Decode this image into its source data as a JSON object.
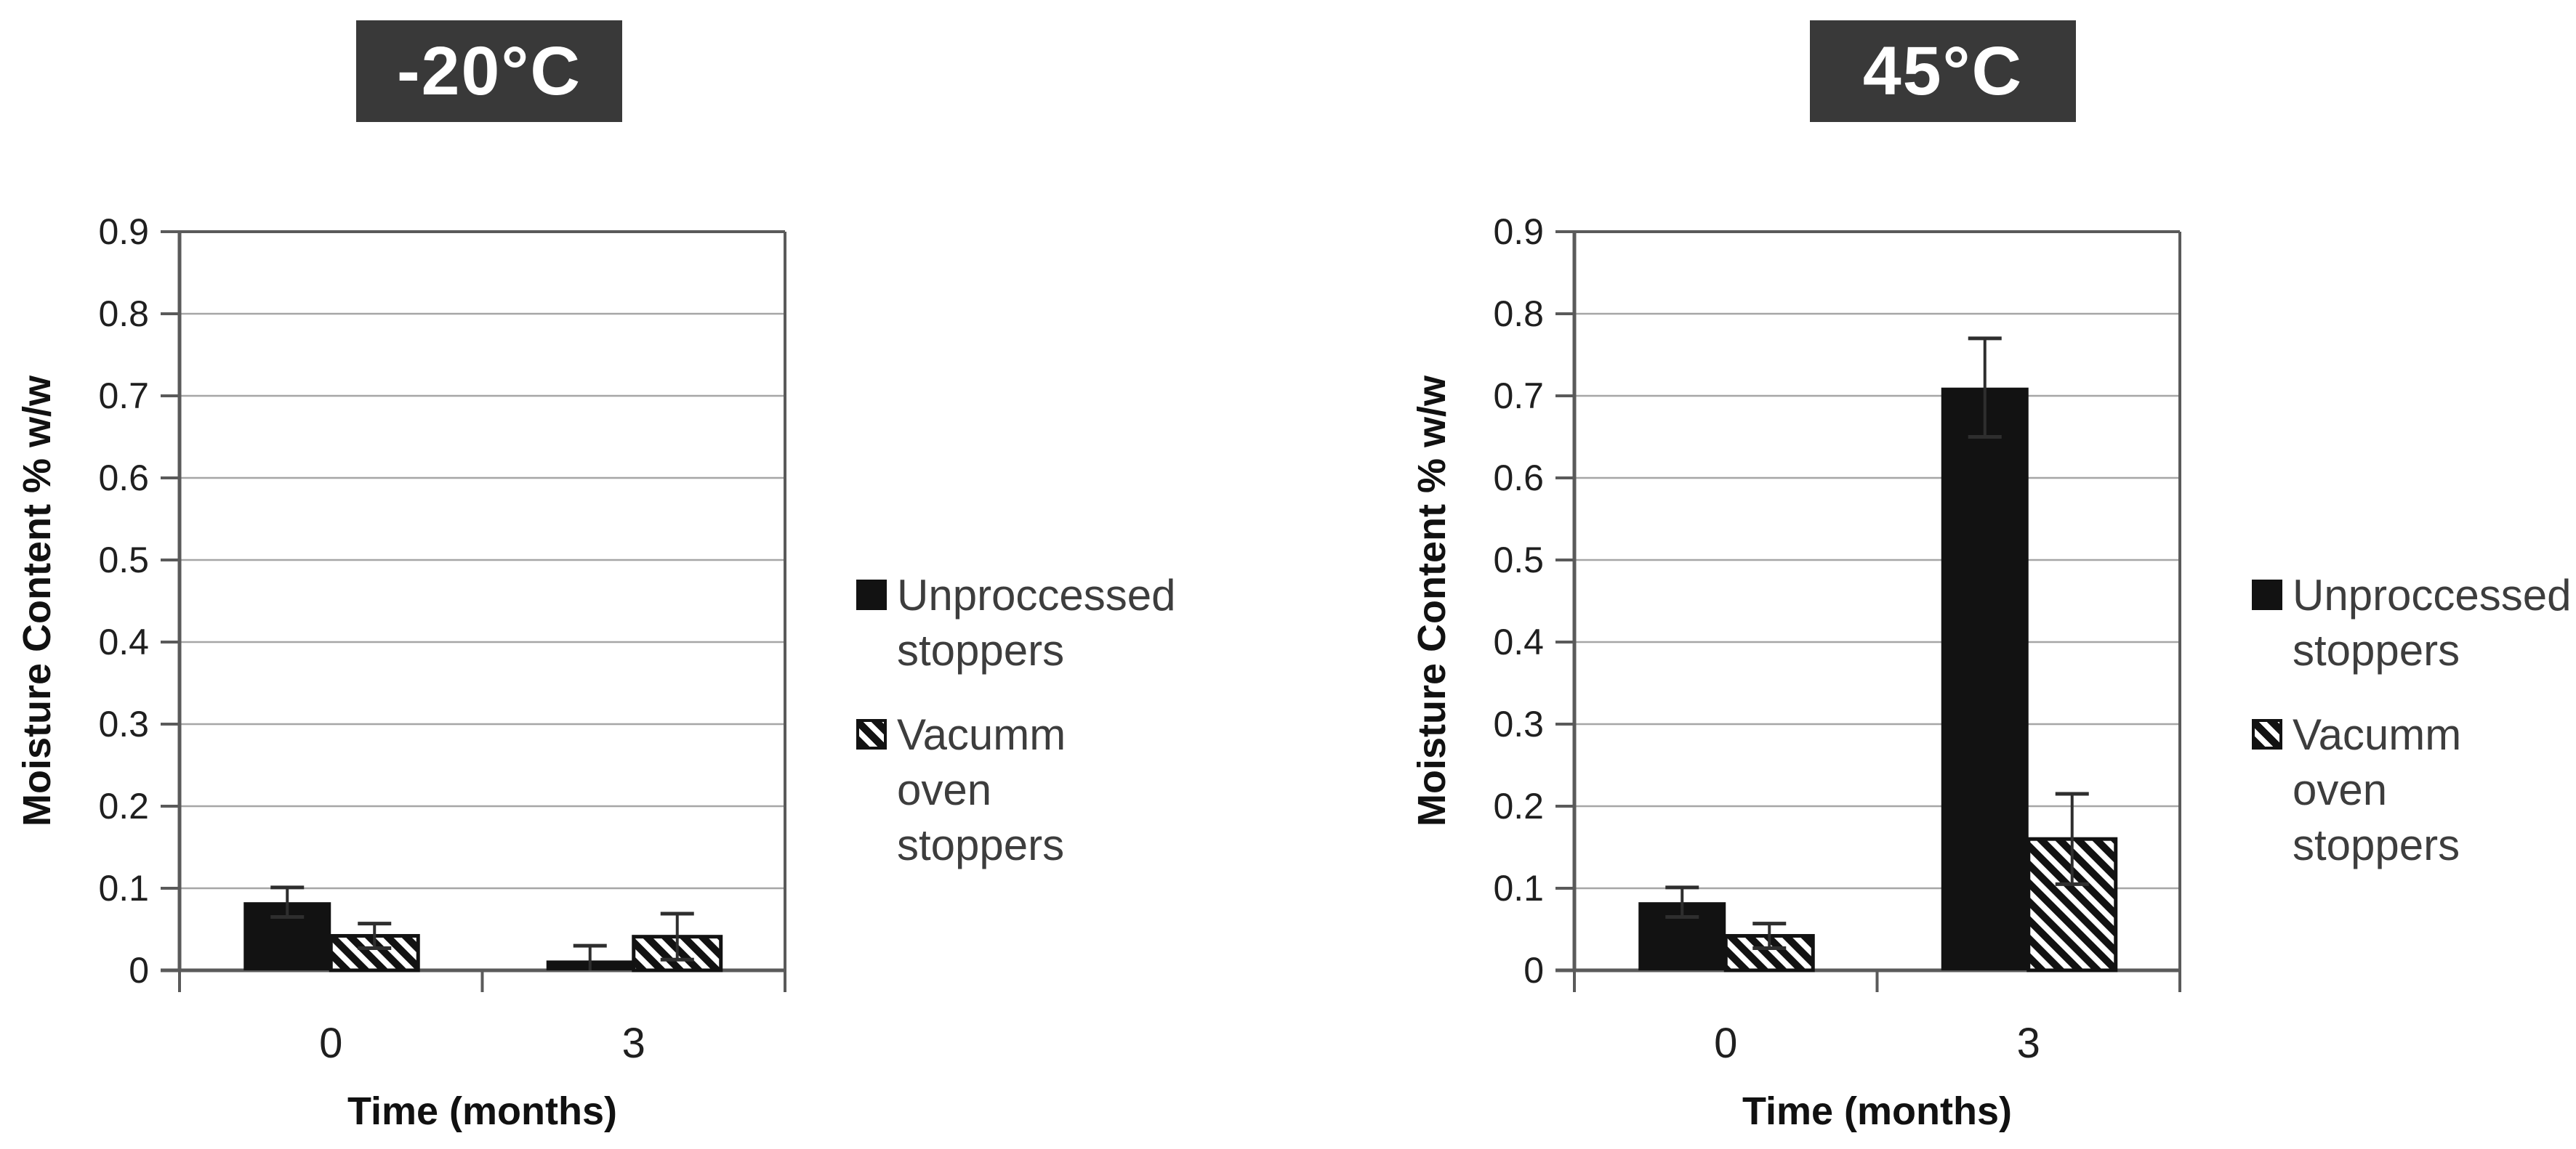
{
  "figure": {
    "background": "#ffffff"
  },
  "colors": {
    "badge_bg": "#393939",
    "badge_text": "#ffffff",
    "bar_fill": "#121212",
    "hatch_bg": "#ffffff",
    "hatch_stripe": "#121212",
    "axis_line": "#5a5a5a",
    "gridline": "#a6a6a6",
    "error_bar": "#2e2e2e",
    "tick_text": "#1f1f1f",
    "axis_title_text": "#111111",
    "legend_text": "#3d3d3d"
  },
  "chart_data": [
    {
      "type": "bar",
      "title": "-20°C",
      "categories": [
        "0",
        "3"
      ],
      "series": [
        {
          "name": "Unproccessed stoppers",
          "pattern": "solid",
          "values": [
            0.083,
            0.012
          ],
          "errors": [
            0.018,
            0.018
          ]
        },
        {
          "name": "Vacumm oven stoppers",
          "pattern": "diagonal-hatch",
          "values": [
            0.042,
            0.041
          ],
          "errors": [
            0.015,
            0.028
          ]
        }
      ],
      "xlabel": "Time (months)",
      "ylabel": "Moisture Content % w/w",
      "ylim": [
        0,
        0.9
      ],
      "ytick_step": 0.1,
      "grid": true,
      "legend_position": "right"
    },
    {
      "type": "bar",
      "title": "45°C",
      "categories": [
        "0",
        "3"
      ],
      "series": [
        {
          "name": "Unproccessed stoppers",
          "pattern": "solid",
          "values": [
            0.083,
            0.71
          ],
          "errors": [
            0.018,
            0.06
          ]
        },
        {
          "name": "Vacumm oven stoppers",
          "pattern": "diagonal-hatch",
          "values": [
            0.042,
            0.16
          ],
          "errors": [
            0.015,
            0.055
          ]
        }
      ],
      "xlabel": "Time (months)",
      "ylabel": "Moisture Content % w/w",
      "ylim": [
        0,
        0.9
      ],
      "ytick_step": 0.1,
      "grid": true,
      "legend_position": "right"
    }
  ]
}
